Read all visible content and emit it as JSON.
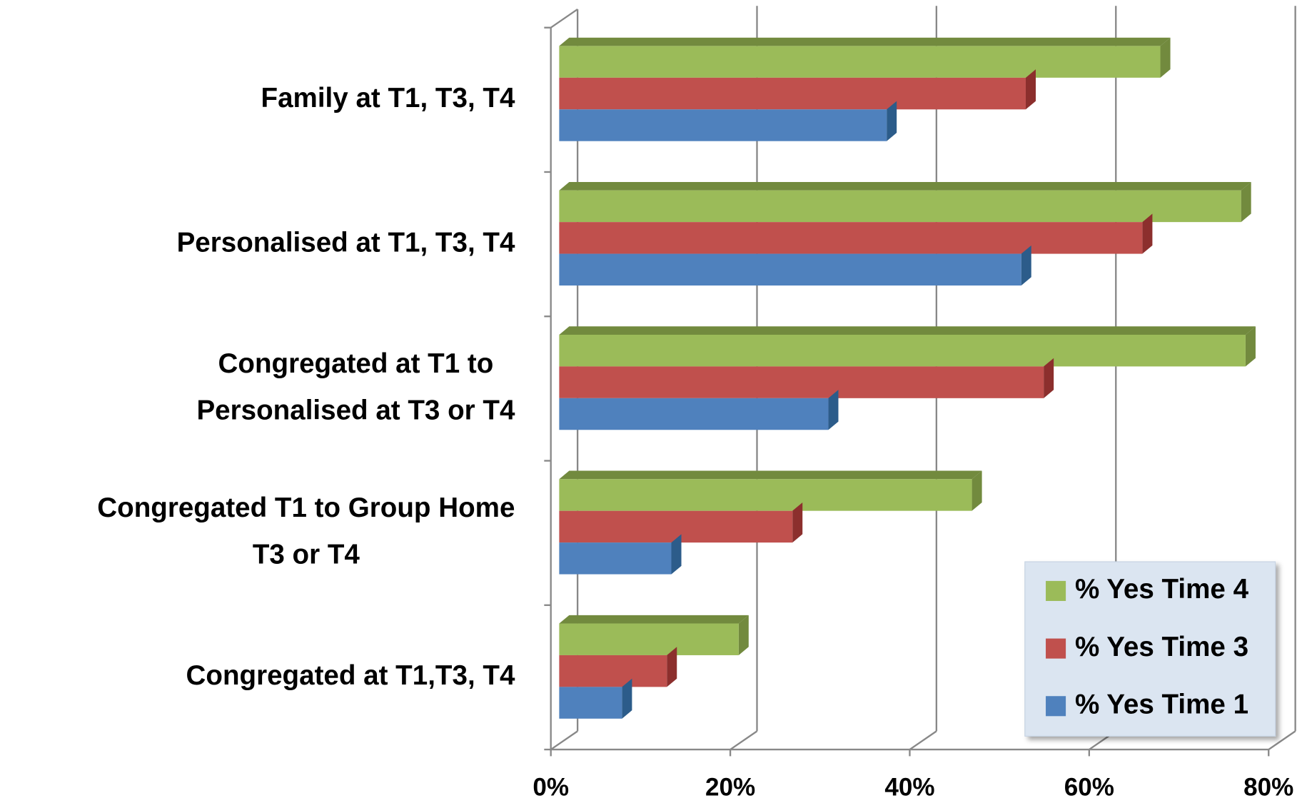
{
  "chart_data": {
    "type": "bar3d_horizontal",
    "categories": [
      [
        "Family at T1, T3, T4"
      ],
      [
        "Personalised at T1, T3, T4"
      ],
      [
        "Congregated at T1 to",
        "Personalised at T3 or T4"
      ],
      [
        "Congregated T1 to Group Home",
        "T3 or T4"
      ],
      [
        "Congregated at T1,T3, T4"
      ]
    ],
    "series": [
      {
        "name": "% Yes Time 1",
        "color": "#4f81bd",
        "side": "#2c5c8a",
        "values": [
          36.5,
          51.5,
          30,
          12.5,
          7
        ]
      },
      {
        "name": "% Yes Time 3",
        "color": "#c0504d",
        "side": "#8c2f2d",
        "values": [
          52,
          65,
          54,
          26,
          12
        ]
      },
      {
        "name": "% Yes Time 4",
        "color": "#9bbb59",
        "side": "#728a3e",
        "values": [
          67,
          76,
          76.5,
          46,
          20
        ]
      }
    ],
    "xlim": [
      0,
      80
    ],
    "xticks": [
      {
        "value": 0,
        "label": "0%"
      },
      {
        "value": 20,
        "label": "20%"
      },
      {
        "value": 40,
        "label": "40%"
      },
      {
        "value": 60,
        "label": "60%"
      },
      {
        "value": 80,
        "label": "80%"
      }
    ],
    "grid": true,
    "legend": "bottom-right"
  }
}
